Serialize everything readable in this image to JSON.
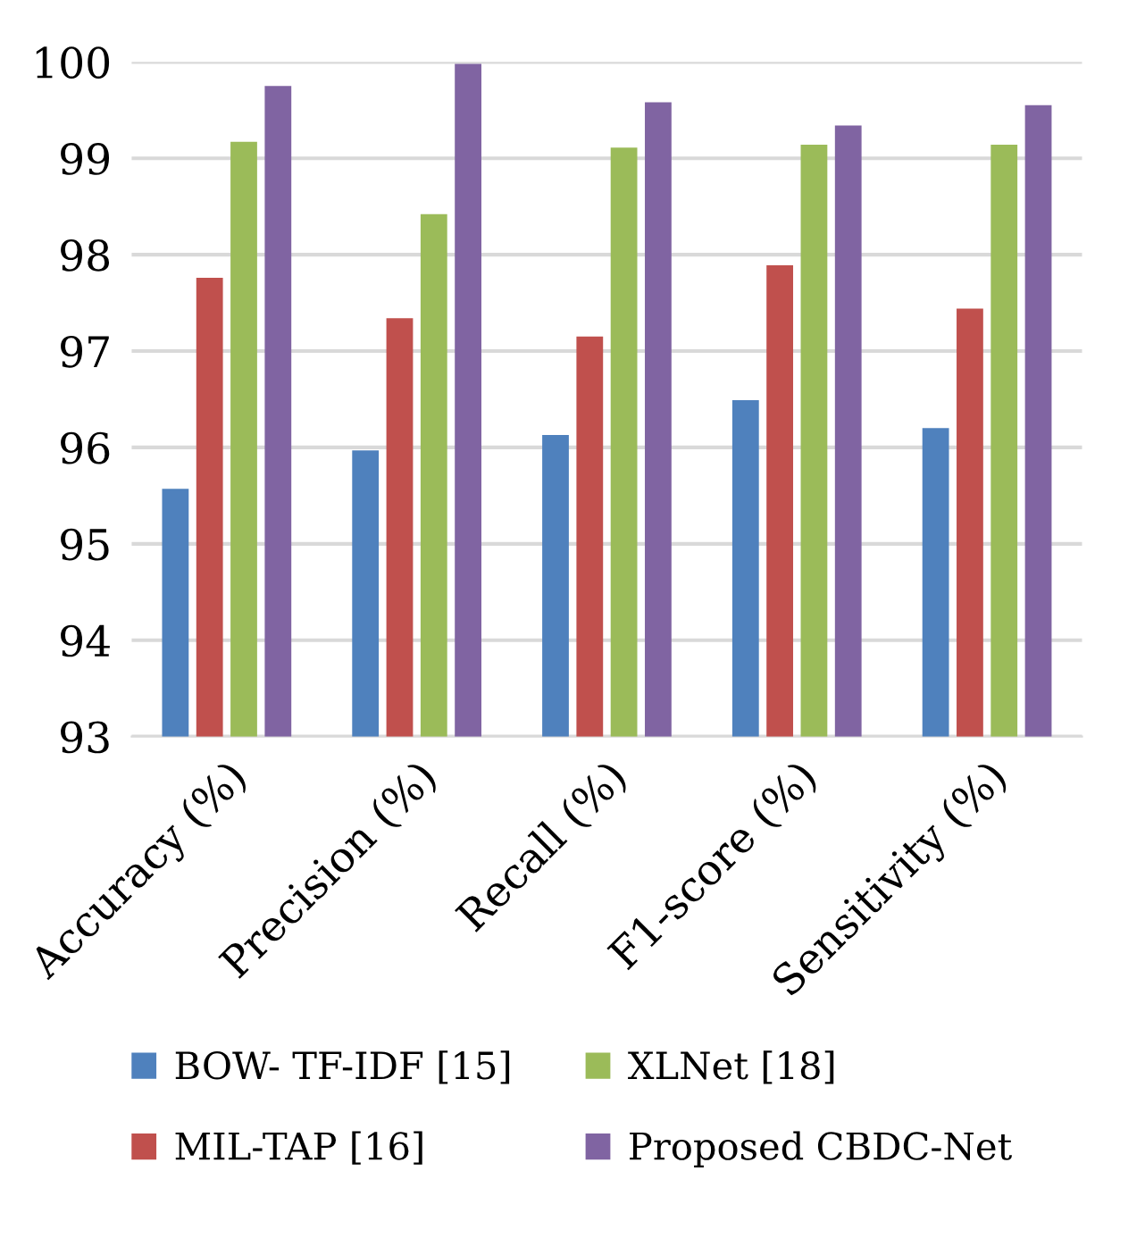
{
  "chart_data": {
    "type": "bar",
    "categories": [
      "Accuracy (%)",
      "Precision (%)",
      "Recall (%)",
      "F1-score (%)",
      "Sensitivity (%)"
    ],
    "series": [
      {
        "name": "BOW- TF-IDF [15]",
        "color": "#4f81bd",
        "values": [
          95.57,
          95.97,
          96.13,
          96.49,
          96.2
        ]
      },
      {
        "name": "MIL-TAP [16]",
        "color": "#c0504d",
        "values": [
          97.76,
          97.34,
          97.15,
          97.89,
          97.44
        ]
      },
      {
        "name": "XLNet [18]",
        "color": "#9bbb59",
        "values": [
          99.17,
          98.42,
          99.11,
          99.14,
          99.14
        ]
      },
      {
        "name": "Proposed CBDC-Net",
        "color": "#8064a2",
        "values": [
          99.75,
          99.98,
          99.58,
          99.34,
          99.55
        ]
      }
    ],
    "ylim": [
      93,
      100
    ],
    "yticks": [
      93,
      94,
      95,
      96,
      97,
      98,
      99,
      100
    ],
    "grid": "y",
    "legend": "bottom"
  }
}
